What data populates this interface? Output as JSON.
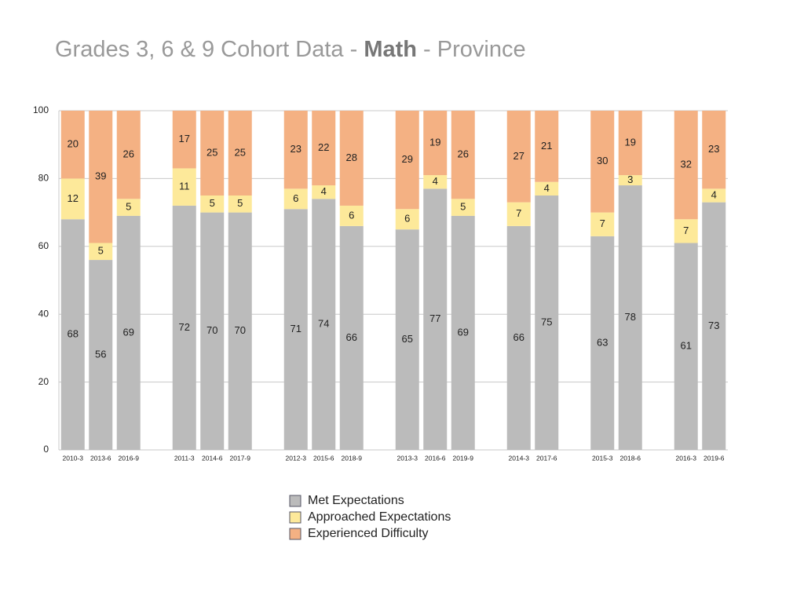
{
  "chart_data": {
    "type": "stacked_bar",
    "title": [
      "Grades 3, 6 & 9 Cohort Data - ",
      "Math",
      " - Province"
    ],
    "categories": [
      "2010-3",
      "2013-6",
      "2016-9",
      null,
      "2011-3",
      "2014-6",
      "2017-9",
      null,
      "2012-3",
      "2015-6",
      "2018-9",
      null,
      "2013-3",
      "2016-6",
      "2019-9",
      null,
      "2014-3",
      "2017-6",
      null,
      "2015-3",
      "2018-6",
      null,
      "2016-3",
      "2019-6"
    ],
    "series": [
      {
        "name": "Met Expectations",
        "color": "#bbbbbb",
        "values": [
          68,
          56,
          69,
          null,
          72,
          70,
          70,
          null,
          71,
          74,
          66,
          null,
          65,
          77,
          69,
          null,
          66,
          75,
          null,
          63,
          78,
          null,
          61,
          73
        ]
      },
      {
        "name": "Approached Expectations",
        "color": "#fde99a",
        "values": [
          12,
          5,
          5,
          null,
          11,
          5,
          5,
          null,
          6,
          4,
          6,
          null,
          6,
          4,
          5,
          null,
          7,
          4,
          null,
          7,
          3,
          null,
          7,
          4
        ]
      },
      {
        "name": "Experienced Difficulty",
        "color": "#f4b183",
        "values": [
          20,
          39,
          26,
          null,
          17,
          25,
          25,
          null,
          23,
          22,
          28,
          null,
          29,
          19,
          26,
          null,
          27,
          21,
          null,
          30,
          19,
          null,
          32,
          23
        ]
      }
    ],
    "ylim": [
      0,
      100
    ],
    "yticks": [
      0,
      20,
      40,
      60,
      80,
      100
    ],
    "grid": true
  }
}
